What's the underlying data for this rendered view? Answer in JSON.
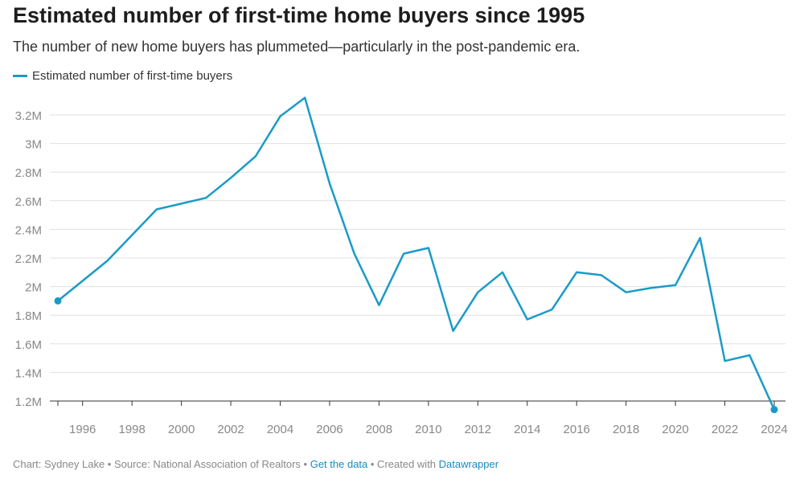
{
  "title": "Estimated number of first-time home buyers since 1995",
  "subtitle": "The number of new home buyers has plummeted—particularly in the post-pandemic era.",
  "footer": {
    "chart_by": "Chart: Sydney Lake",
    "sep1": " • ",
    "source": "Source: National Association of Realtors",
    "sep2": " • ",
    "get_data": "Get the data",
    "sep3": " • Created with ",
    "datawrapper": "Datawrapper"
  },
  "colors": {
    "line": "#1a9bc7",
    "grid": "#e0e0e0",
    "axis_text": "#888888"
  },
  "chart_data": {
    "type": "line",
    "title": "Estimated number of first-time home buyers since 1995",
    "xlabel": "",
    "ylabel": "",
    "ylim": [
      1.2,
      3.2
    ],
    "xlim": [
      1995,
      2024
    ],
    "grid": true,
    "legend": "top-left",
    "y_ticks": [
      {
        "v": 1.2,
        "label": "1.2M"
      },
      {
        "v": 1.4,
        "label": "1.4M"
      },
      {
        "v": 1.6,
        "label": "1.6M"
      },
      {
        "v": 1.8,
        "label": "1.8M"
      },
      {
        "v": 2.0,
        "label": "2M"
      },
      {
        "v": 2.2,
        "label": "2.2M"
      },
      {
        "v": 2.4,
        "label": "2.4M"
      },
      {
        "v": 2.6,
        "label": "2.6M"
      },
      {
        "v": 2.8,
        "label": "2.8M"
      },
      {
        "v": 3.0,
        "label": "3M"
      },
      {
        "v": 3.2,
        "label": "3.2M"
      }
    ],
    "x_ticks": [
      "1996",
      "1998",
      "2000",
      "2002",
      "2004",
      "2006",
      "2008",
      "2010",
      "2012",
      "2014",
      "2016",
      "2018",
      "2020",
      "2022",
      "2024"
    ],
    "series": [
      {
        "name": "Estimated number of first-time buyers",
        "unit": "millions",
        "x": [
          1995,
          1996,
          1997,
          1998,
          1999,
          2000,
          2001,
          2002,
          2003,
          2004,
          2005,
          2006,
          2007,
          2008,
          2009,
          2010,
          2011,
          2012,
          2013,
          2014,
          2015,
          2016,
          2017,
          2018,
          2019,
          2020,
          2021,
          2022,
          2023,
          2024
        ],
        "y": [
          1.9,
          2.04,
          2.18,
          2.36,
          2.54,
          2.58,
          2.62,
          2.76,
          2.91,
          3.19,
          3.32,
          2.72,
          2.23,
          1.87,
          2.23,
          2.27,
          1.69,
          1.96,
          2.1,
          1.77,
          1.84,
          2.1,
          2.08,
          1.96,
          1.99,
          2.01,
          2.34,
          1.48,
          1.52,
          1.14
        ]
      }
    ]
  }
}
